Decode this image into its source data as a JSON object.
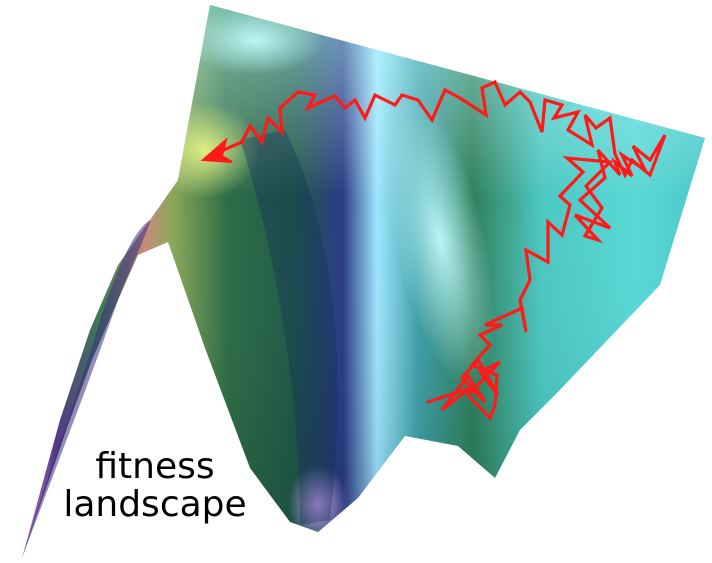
{
  "caption": {
    "line1": "fitness",
    "line2": "landscape"
  },
  "colors": {
    "path": "#ff1a1a",
    "surface_cyan": "#5fe0e0",
    "surface_green": "#2f7a48",
    "surface_navy": "#2a2f7a",
    "surface_pink": "#e9a9d8"
  },
  "icons": {
    "path_arrowhead": "arrowhead-icon"
  }
}
